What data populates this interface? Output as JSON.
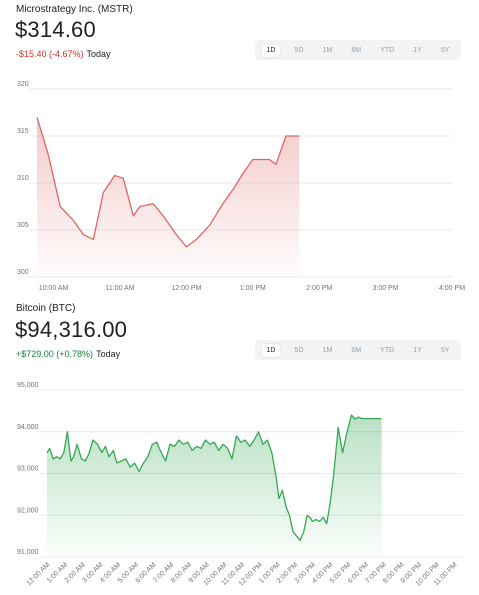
{
  "mstr": {
    "name": "Microstrategy Inc. (MSTR)",
    "price": "$314.60",
    "change": "-$15.40 (-4.67%)",
    "today": "Today",
    "ranges": [
      "1D",
      "5D",
      "1M",
      "6M",
      "YTD",
      "1Y",
      "5Y"
    ],
    "active_range": "1D"
  },
  "btc": {
    "name": "Bitcoin (BTC)",
    "price": "$94,316.00",
    "change": "+$729.00 (+0.78%)",
    "today": "Today",
    "ranges": [
      "1D",
      "5D",
      "1M",
      "6M",
      "YTD",
      "1Y",
      "5Y"
    ],
    "active_range": "1D"
  },
  "colors": {
    "negative": "#d93025",
    "positive": "#188038",
    "mstr_line": "#e06666",
    "btc_line": "#34a853",
    "grid": "#e8eaed"
  },
  "chart_data": [
    {
      "type": "area",
      "title": "Microstrategy Inc. (MSTR)",
      "x_unit": "hours",
      "xlim": [
        9.75,
        16.0
      ],
      "ylim": [
        300,
        320
      ],
      "yticks": [
        300,
        305,
        310,
        315,
        320
      ],
      "xticks": [
        {
          "x": 10.0,
          "label": "10:00 AM"
        },
        {
          "x": 11.0,
          "label": "11:00 AM"
        },
        {
          "x": 12.0,
          "label": "12:00 PM"
        },
        {
          "x": 13.0,
          "label": "1:00 PM"
        },
        {
          "x": 14.0,
          "label": "2:00 PM"
        },
        {
          "x": 15.0,
          "label": "3:00 PM"
        },
        {
          "x": 16.0,
          "label": "4:00 PM"
        }
      ],
      "x": [
        9.75,
        9.92,
        10.1,
        10.3,
        10.45,
        10.6,
        10.75,
        10.92,
        11.05,
        11.2,
        11.3,
        11.5,
        11.65,
        11.85,
        12.0,
        12.15,
        12.35,
        12.55,
        12.72,
        12.85,
        13.0,
        13.1,
        13.25,
        13.35,
        13.5,
        13.7
      ],
      "y": [
        317.0,
        313.0,
        307.5,
        306.0,
        304.5,
        304.0,
        309.0,
        310.8,
        310.5,
        306.5,
        307.5,
        307.8,
        306.5,
        304.5,
        303.2,
        304.0,
        305.5,
        307.8,
        309.5,
        311.0,
        312.5,
        312.5,
        312.5,
        312.0,
        315.0,
        315.0
      ],
      "grid": true
    },
    {
      "type": "area",
      "title": "Bitcoin (BTC)",
      "x_unit": "hours",
      "xlim": [
        0,
        23.5
      ],
      "ylim": [
        91000,
        95000
      ],
      "yticks": [
        91000,
        92000,
        93000,
        94000,
        95000
      ],
      "ytick_labels": [
        "91,000",
        "92,000",
        "93,000",
        "94,000",
        "95,000"
      ],
      "xticks": [
        {
          "x": 0,
          "label": "12:00 AM"
        },
        {
          "x": 1,
          "label": "1:00 AM"
        },
        {
          "x": 2,
          "label": "2:00 AM"
        },
        {
          "x": 3,
          "label": "3:00 AM"
        },
        {
          "x": 4,
          "label": "4:00 AM"
        },
        {
          "x": 5,
          "label": "5:00 AM"
        },
        {
          "x": 6,
          "label": "6:00 AM"
        },
        {
          "x": 7,
          "label": "7:00 AM"
        },
        {
          "x": 8,
          "label": "8:00 AM"
        },
        {
          "x": 9,
          "label": "9:00 AM"
        },
        {
          "x": 10,
          "label": "10:00 AM"
        },
        {
          "x": 11,
          "label": "11:00 AM"
        },
        {
          "x": 12,
          "label": "12:00 PM"
        },
        {
          "x": 13,
          "label": "1:00 PM"
        },
        {
          "x": 14,
          "label": "2:00 PM"
        },
        {
          "x": 15,
          "label": "3:00 PM"
        },
        {
          "x": 16,
          "label": "4:00 PM"
        },
        {
          "x": 17,
          "label": "5:00 PM"
        },
        {
          "x": 18,
          "label": "6:00 PM"
        },
        {
          "x": 19,
          "label": "7:00 PM"
        },
        {
          "x": 20,
          "label": "8:00 PM"
        },
        {
          "x": 21,
          "label": "9:00 PM"
        },
        {
          "x": 22,
          "label": "10:00 PM"
        },
        {
          "x": 23,
          "label": "11:00 PM"
        }
      ],
      "x": [
        0.0,
        0.15,
        0.35,
        0.55,
        0.75,
        0.95,
        1.15,
        1.35,
        1.5,
        1.7,
        1.95,
        2.15,
        2.35,
        2.6,
        2.85,
        3.1,
        3.3,
        3.5,
        3.75,
        3.95,
        4.2,
        4.45,
        4.7,
        4.95,
        5.2,
        5.45,
        5.7,
        5.95,
        6.2,
        6.45,
        6.7,
        6.95,
        7.2,
        7.45,
        7.7,
        7.95,
        8.2,
        8.45,
        8.7,
        8.95,
        9.2,
        9.45,
        9.7,
        9.95,
        10.2,
        10.45,
        10.7,
        10.95,
        11.2,
        11.45,
        11.7,
        11.95,
        12.2,
        12.45,
        12.7,
        12.95,
        13.1,
        13.3,
        13.5,
        13.7,
        13.9,
        14.1,
        14.3,
        14.5,
        14.7,
        14.85,
        15.0,
        15.2,
        15.4,
        15.6,
        15.8,
        16.0,
        16.2,
        16.45,
        16.7,
        16.95,
        17.2,
        17.4,
        17.6,
        17.8,
        18.0,
        18.15,
        18.3,
        18.45,
        18.6,
        18.75,
        18.9
      ],
      "y": [
        93500,
        93600,
        93350,
        93400,
        93350,
        93500,
        94000,
        93300,
        93400,
        93700,
        93350,
        93300,
        93450,
        93800,
        93700,
        93500,
        93650,
        93400,
        93550,
        93250,
        93300,
        93350,
        93150,
        93250,
        93050,
        93250,
        93400,
        93700,
        93750,
        93500,
        93300,
        93700,
        93650,
        93800,
        93700,
        93750,
        93550,
        93650,
        93600,
        93800,
        93700,
        93750,
        93550,
        93700,
        93600,
        93350,
        93900,
        93750,
        93800,
        93650,
        93800,
        94000,
        93700,
        93800,
        93500,
        92900,
        92400,
        92600,
        92200,
        92000,
        91600,
        91500,
        91400,
        91600,
        92000,
        91950,
        91850,
        91900,
        91850,
        91950,
        91800,
        92300,
        93000,
        94100,
        93500,
        94000,
        94400,
        94300,
        94350,
        94316,
        94316,
        94316,
        94316,
        94316,
        94316,
        94316,
        94316
      ],
      "grid": true
    }
  ]
}
